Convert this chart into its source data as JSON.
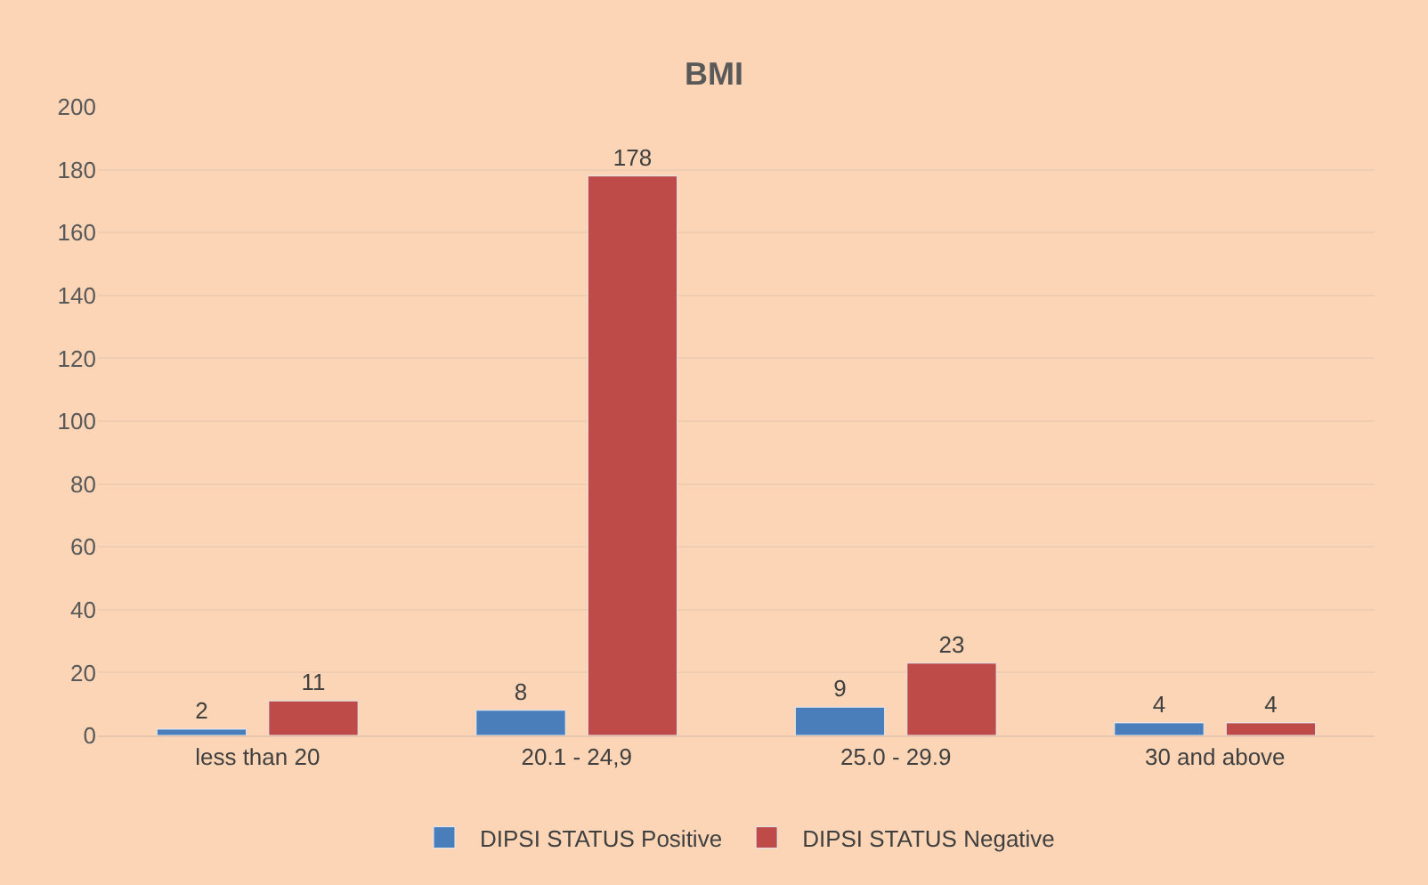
{
  "chart_data": {
    "type": "bar",
    "title": "BMI",
    "categories": [
      "less than 20",
      "20.1 - 24,9",
      "25.0 - 29.9",
      "30 and above"
    ],
    "series": [
      {
        "name": "DIPSI STATUS Positive",
        "color": "#4a7ebb",
        "values": [
          2,
          8,
          9,
          4
        ]
      },
      {
        "name": "DIPSI STATUS Negative",
        "color": "#be4b48",
        "values": [
          11,
          178,
          23,
          4
        ]
      }
    ],
    "ylim": [
      0,
      200
    ],
    "yticks": [
      0,
      20,
      40,
      60,
      80,
      100,
      120,
      140,
      160,
      180,
      200
    ],
    "grid": "y",
    "legend": "bottom",
    "data_labels": true
  }
}
